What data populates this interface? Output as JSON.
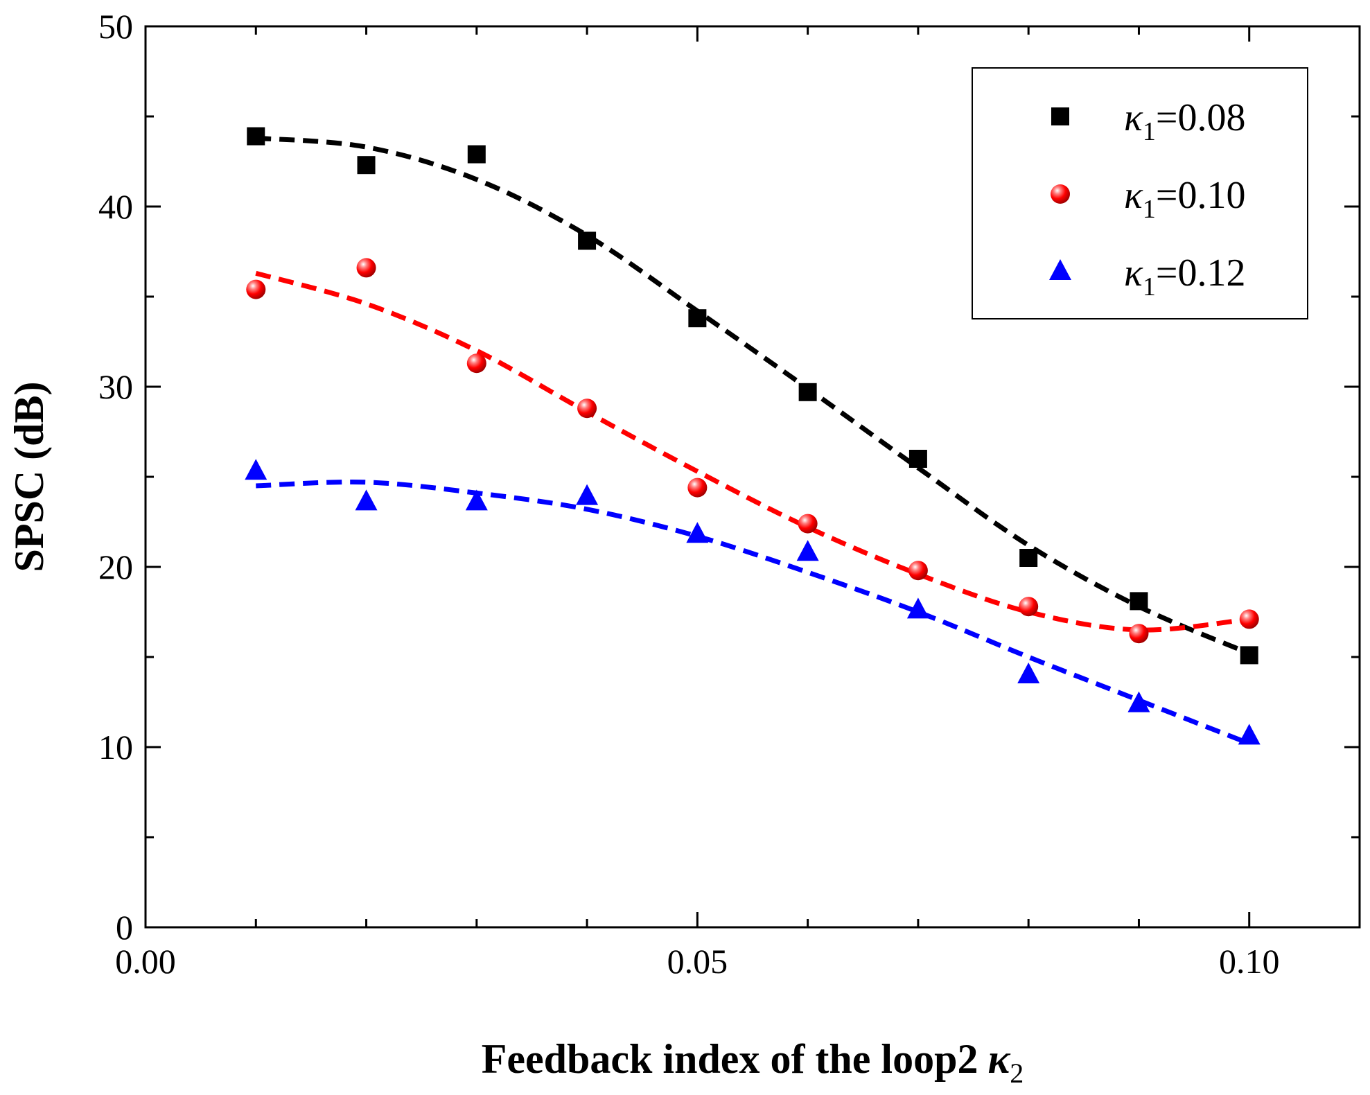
{
  "chart_data": {
    "type": "scatter",
    "title": "",
    "xlabel": "Feedback index of the loop2",
    "xlabel_symbol": "κ",
    "xlabel_subscript": "2",
    "ylabel": "SPSC (dB)",
    "xlim": [
      0.0,
      0.11
    ],
    "ylim": [
      0,
      50
    ],
    "x_ticks": [
      0.0,
      0.05,
      0.1
    ],
    "x_tick_labels": [
      "0.00",
      "0.05",
      "0.10"
    ],
    "y_ticks": [
      0,
      10,
      20,
      30,
      40,
      50
    ],
    "y_tick_labels": [
      "0",
      "10",
      "20",
      "30",
      "40",
      "50"
    ],
    "grid": false,
    "legend_position": "top-right",
    "x": [
      0.01,
      0.02,
      0.03,
      0.04,
      0.05,
      0.06,
      0.07,
      0.08,
      0.09,
      0.1
    ],
    "series": [
      {
        "name": "κ1=0.08",
        "label_symbol": "κ",
        "label_subscript": "1",
        "label_value": "=0.08",
        "marker": "square",
        "color": "#000000",
        "values": [
          43.9,
          42.3,
          42.9,
          38.1,
          33.8,
          29.7,
          26.0,
          20.5,
          18.1,
          15.1
        ],
        "fit": [
          43.8,
          43.3,
          41.5,
          38.4,
          34.2,
          29.9,
          25.5,
          21.2,
          17.8,
          15.2
        ]
      },
      {
        "name": "κ1=0.10",
        "label_symbol": "κ",
        "label_subscript": "1",
        "label_value": "=0.10",
        "marker": "sphere",
        "color": "#ff0000",
        "values": [
          35.4,
          36.6,
          31.3,
          28.8,
          24.4,
          22.4,
          19.8,
          17.8,
          16.3,
          17.1
        ],
        "fit": [
          36.3,
          34.6,
          32.0,
          28.6,
          25.3,
          22.2,
          19.6,
          17.5,
          16.5,
          17.1
        ]
      },
      {
        "name": "κ1=0.12",
        "label_symbol": "κ",
        "label_subscript": "1",
        "label_value": "=0.12",
        "marker": "triangle",
        "color": "#0000ff",
        "values": [
          25.3,
          23.6,
          23.6,
          23.9,
          21.8,
          20.8,
          17.6,
          14.0,
          12.4,
          10.6
        ],
        "fit": [
          24.5,
          24.7,
          24.1,
          23.2,
          21.7,
          19.7,
          17.5,
          15.0,
          12.6,
          10.2
        ]
      }
    ]
  }
}
